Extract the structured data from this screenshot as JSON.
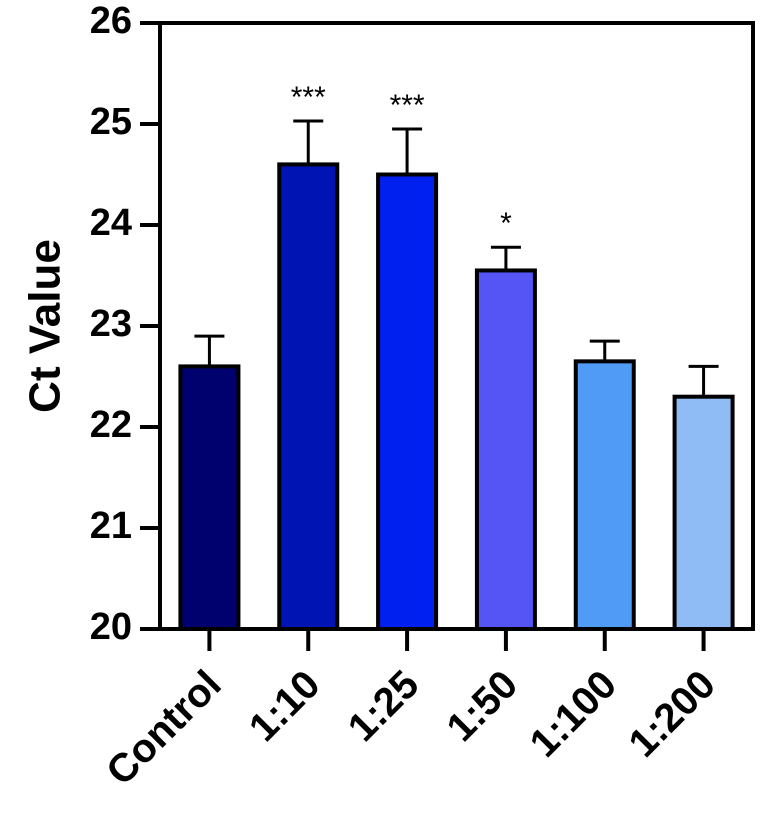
{
  "chart_data": {
    "type": "bar",
    "title": "",
    "xlabel": "",
    "ylabel": "Ct Value",
    "ylim": [
      20,
      26
    ],
    "yticks": [
      20,
      21,
      22,
      23,
      24,
      25,
      26
    ],
    "categories": [
      "Control",
      "1:10",
      "1:25",
      "1:50",
      "1:100",
      "1:200"
    ],
    "values": [
      22.6,
      24.6,
      24.5,
      23.55,
      22.65,
      22.3
    ],
    "errors": [
      0.3,
      0.43,
      0.45,
      0.23,
      0.2,
      0.3
    ],
    "significance": [
      "",
      "***",
      "***",
      "*",
      "",
      ""
    ],
    "colors": [
      "#00006E",
      "#0014B4",
      "#0020F0",
      "#5555F5",
      "#4F9BF5",
      "#8FBCF5"
    ],
    "grid": false,
    "legend": "none"
  }
}
